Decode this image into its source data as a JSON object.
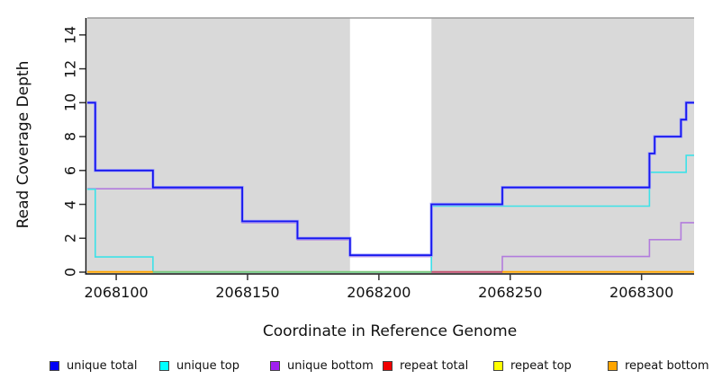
{
  "chart_data": {
    "type": "line",
    "step": true,
    "title": "",
    "xlabel": "Coordinate in Reference Genome",
    "ylabel": "Read Coverage Depth",
    "xlim": [
      2068089,
      2068320
    ],
    "ylim": [
      0,
      15
    ],
    "x_ticks": [
      2068100,
      2068150,
      2068200,
      2068250,
      2068300
    ],
    "y_ticks": [
      0,
      2,
      4,
      6,
      8,
      10,
      12,
      14
    ],
    "grid": false,
    "legend_position": "bottom",
    "plot_bg": "#ffffff",
    "shaded_regions": [
      {
        "x0": 2068089,
        "x1": 2068189,
        "color": "#d9d9d9"
      },
      {
        "x0": 2068220,
        "x1": 2068320,
        "color": "#d9d9d9"
      }
    ],
    "cap_line": {
      "value": 15,
      "color": "#9b9b9b"
    },
    "series": [
      {
        "name": "unique total",
        "color": "#1717ee",
        "halo": "#9a9aff",
        "width": 1.8,
        "segments": [
          [
            2068089,
            2068092,
            10
          ],
          [
            2068092,
            2068114,
            6
          ],
          [
            2068114,
            2068148,
            5
          ],
          [
            2068148,
            2068169,
            3
          ],
          [
            2068169,
            2068189,
            2
          ],
          [
            2068189,
            2068220,
            1
          ],
          [
            2068220,
            2068247,
            4
          ],
          [
            2068247,
            2068303,
            5
          ],
          [
            2068303,
            2068305,
            7
          ],
          [
            2068305,
            2068315,
            8
          ],
          [
            2068315,
            2068317,
            9
          ],
          [
            2068317,
            2068320,
            10
          ]
        ]
      },
      {
        "name": "unique top",
        "color": "#3de2e8",
        "halo": "",
        "width": 1.6,
        "segments": [
          [
            2068089,
            2068092,
            5
          ],
          [
            2068092,
            2068114,
            1
          ],
          [
            2068114,
            2068220,
            0
          ],
          [
            2068220,
            2068303,
            4
          ],
          [
            2068303,
            2068317,
            6
          ],
          [
            2068317,
            2068320,
            7
          ]
        ]
      },
      {
        "name": "unique bottom",
        "color": "#b27cdd",
        "halo": "",
        "width": 1.6,
        "segments": [
          [
            2068089,
            2068148,
            5
          ],
          [
            2068148,
            2068169,
            3
          ],
          [
            2068169,
            2068189,
            2
          ],
          [
            2068189,
            2068220,
            1
          ],
          [
            2068220,
            2068247,
            0
          ],
          [
            2068247,
            2068303,
            1
          ],
          [
            2068303,
            2068315,
            2
          ],
          [
            2068315,
            2068320,
            3
          ]
        ]
      },
      {
        "name": "repeat total",
        "color": "#e60000",
        "halo": "",
        "width": 1.6,
        "segments": [
          [
            2068089,
            2068320,
            0
          ]
        ]
      },
      {
        "name": "repeat top",
        "color": "#ffff00",
        "halo": "",
        "width": 1.6,
        "segments": [
          [
            2068089,
            2068320,
            0
          ]
        ]
      },
      {
        "name": "repeat bottom",
        "color": "#ffa500",
        "halo": "",
        "width": 1.6,
        "segments": [
          [
            2068089,
            2068320,
            0
          ]
        ]
      }
    ],
    "zero_line_segments": [
      {
        "x0": 2068089,
        "x1": 2068114,
        "color": "#ffa500"
      },
      {
        "x0": 2068114,
        "x1": 2068220,
        "color": "#7dc87d"
      },
      {
        "x0": 2068220,
        "x1": 2068247,
        "color": "#c4556e"
      },
      {
        "x0": 2068247,
        "x1": 2068320,
        "color": "#ffa500"
      }
    ]
  },
  "legend": {
    "items": [
      {
        "label": "unique total",
        "color": "#0000f5"
      },
      {
        "label": "unique top",
        "color": "#00ffff"
      },
      {
        "label": "unique bottom",
        "color": "#a020f0"
      },
      {
        "label": "repeat total",
        "color": "#f00000"
      },
      {
        "label": "repeat top",
        "color": "#ffff00"
      },
      {
        "label": "repeat bottom",
        "color": "#ffa500"
      }
    ]
  },
  "layout_colors": {
    "axis": "#111111",
    "tick": "#333333"
  }
}
